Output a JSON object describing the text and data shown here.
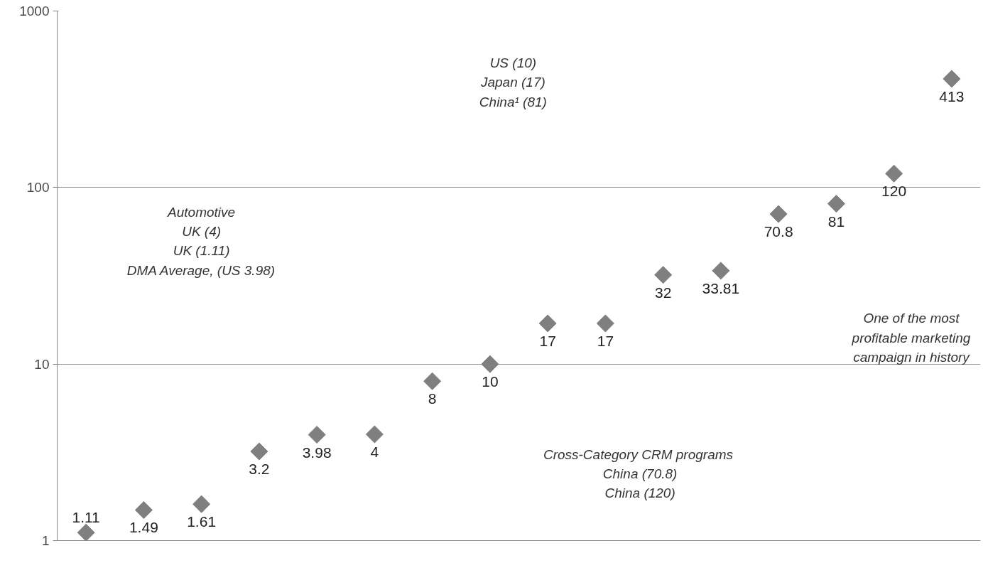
{
  "chart_data": {
    "type": "scatter",
    "categories": [
      null,
      null,
      null,
      null,
      null,
      null,
      null,
      null,
      null,
      null,
      null,
      null,
      null,
      null,
      null,
      null
    ],
    "values": [
      1.11,
      1.49,
      1.61,
      3.2,
      3.98,
      4,
      8,
      10,
      17,
      17,
      32,
      33.81,
      70.8,
      81,
      120,
      413
    ],
    "color": "#7f7f7f",
    "marker": "diamond",
    "data_labels": true,
    "log": true,
    "grid": "y",
    "ylim": [
      1,
      1000
    ],
    "yticks": [
      1,
      10,
      100,
      1000
    ],
    "tick_labels": "y",
    "annotations": [
      "Automotive\nUK (4)\nUK (1.11)\nDMA Average, (US 3.98)",
      "US (10)\nJapan (17)\nChina¹ (81)",
      "Cross-Category  CRM programs\nChina (70.8)\nChina (120)",
      "One of the most\nprofitable marketing\ncampaign in history"
    ]
  }
}
